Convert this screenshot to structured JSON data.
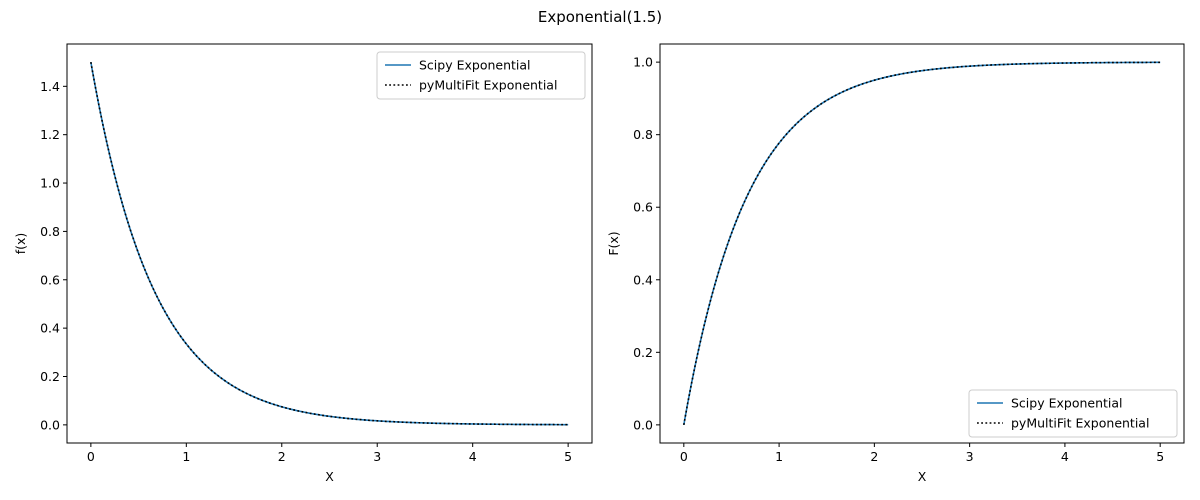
{
  "figure": {
    "suptitle": "Exponential(1.5)"
  },
  "chart_data": [
    {
      "type": "line",
      "title": "",
      "xlabel": "X",
      "ylabel": "f(x)",
      "xlim": [
        -0.25,
        5.25
      ],
      "ylim": [
        -0.075,
        1.575
      ],
      "xticks": [
        0,
        1,
        2,
        3,
        4,
        5
      ],
      "yticks": [
        0.0,
        0.2,
        0.4,
        0.6,
        0.8,
        1.0,
        1.2,
        1.4
      ],
      "ytick_labels": [
        "0.0",
        "0.2",
        "0.4",
        "0.6",
        "0.8",
        "1.0",
        "1.2",
        "1.4"
      ],
      "legend_position": "upper-right",
      "function": "pdf",
      "rate": 1.5,
      "x": [
        0,
        0.25,
        0.5,
        0.75,
        1,
        1.25,
        1.5,
        1.75,
        2,
        2.25,
        2.5,
        2.75,
        3,
        3.25,
        3.5,
        3.75,
        4,
        4.25,
        4.5,
        4.75,
        5
      ],
      "series": [
        {
          "name": "Scipy Exponential",
          "color": "#1f77b4",
          "style": "solid",
          "values": [
            1.5,
            1.031,
            0.709,
            0.487,
            0.335,
            0.23,
            0.158,
            0.109,
            0.075,
            0.051,
            0.035,
            0.024,
            0.017,
            0.011,
            0.008,
            0.005,
            0.004,
            0.003,
            0.002,
            0.001,
            0.001
          ]
        },
        {
          "name": "pyMultiFit Exponential",
          "color": "#000000",
          "style": "dotted",
          "values": [
            1.5,
            1.031,
            0.709,
            0.487,
            0.335,
            0.23,
            0.158,
            0.109,
            0.075,
            0.051,
            0.035,
            0.024,
            0.017,
            0.011,
            0.008,
            0.005,
            0.004,
            0.003,
            0.002,
            0.001,
            0.001
          ]
        }
      ]
    },
    {
      "type": "line",
      "title": "",
      "xlabel": "X",
      "ylabel": "F(x)",
      "xlim": [
        -0.25,
        5.25
      ],
      "ylim": [
        -0.05,
        1.05
      ],
      "xticks": [
        0,
        1,
        2,
        3,
        4,
        5
      ],
      "yticks": [
        0.0,
        0.2,
        0.4,
        0.6,
        0.8,
        1.0
      ],
      "ytick_labels": [
        "0.0",
        "0.2",
        "0.4",
        "0.6",
        "0.8",
        "1.0"
      ],
      "legend_position": "lower-right",
      "function": "cdf",
      "rate": 1.5,
      "x": [
        0,
        0.25,
        0.5,
        0.75,
        1,
        1.25,
        1.5,
        1.75,
        2,
        2.25,
        2.5,
        2.75,
        3,
        3.25,
        3.5,
        3.75,
        4,
        4.25,
        4.5,
        4.75,
        5
      ],
      "series": [
        {
          "name": "Scipy Exponential",
          "color": "#1f77b4",
          "style": "solid",
          "values": [
            0,
            0.313,
            0.528,
            0.675,
            0.777,
            0.847,
            0.895,
            0.928,
            0.95,
            0.966,
            0.977,
            0.984,
            0.989,
            0.992,
            0.995,
            0.996,
            0.998,
            0.998,
            0.999,
            0.999,
            0.999
          ]
        },
        {
          "name": "pyMultiFit Exponential",
          "color": "#000000",
          "style": "dotted",
          "values": [
            0,
            0.313,
            0.528,
            0.675,
            0.777,
            0.847,
            0.895,
            0.928,
            0.95,
            0.966,
            0.977,
            0.984,
            0.989,
            0.992,
            0.995,
            0.996,
            0.998,
            0.998,
            0.999,
            0.999,
            0.999
          ]
        }
      ]
    }
  ]
}
